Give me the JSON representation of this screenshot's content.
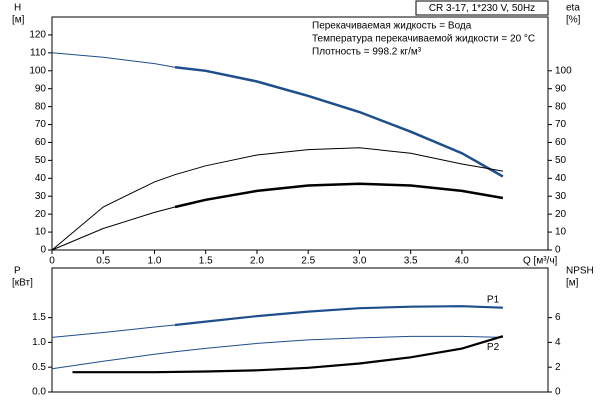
{
  "chart_data": [
    {
      "type": "line",
      "title": "CR 3-17, 1*230 V, 50Hz",
      "annotations": [
        "Перекачиваемая жидкость = Вода",
        "Температура перекачиваемой жидкости = 20 °C",
        "Плотность = 998.2 кг/м³"
      ],
      "ylabel": [
        "H",
        "[м]"
      ],
      "y2label": [
        "eta",
        "[%]"
      ],
      "xlabel": "Q [м³/ч]",
      "x": [
        0,
        0.5,
        1.0,
        1.2,
        1.5,
        2.0,
        2.5,
        3.0,
        3.5,
        4.0,
        4.4
      ],
      "xlim": [
        0,
        4.84
      ],
      "xticks": [
        0,
        0.5,
        {
          "value": 1,
          "label": "1.0"
        },
        1.5,
        {
          "value": 2,
          "label": "2.0"
        },
        2.5,
        {
          "value": 3,
          "label": "3.0"
        },
        3.5,
        {
          "value": 4,
          "label": "4.0"
        }
      ],
      "ylim": [
        0,
        130
      ],
      "yticks": [
        0,
        10,
        20,
        30,
        40,
        50,
        60,
        70,
        80,
        90,
        100,
        110,
        120
      ],
      "y2lim": [
        0,
        130
      ],
      "y2ticks": [
        0,
        10,
        20,
        30,
        40,
        50,
        60,
        70,
        80,
        90,
        100
      ],
      "series": [
        {
          "color": "#1f4e8c",
          "width": 1,
          "values": [
            110,
            107.5,
            104,
            102,
            null,
            null,
            null,
            null,
            null,
            null,
            null
          ]
        },
        {
          "color": "#1f4e8c",
          "width": 2.5,
          "values": [
            null,
            null,
            null,
            102,
            100,
            94,
            86,
            77,
            66,
            54,
            41
          ]
        },
        {
          "color": "#000000",
          "width": 1,
          "axis": "y2",
          "values": [
            0,
            24,
            38,
            42,
            47,
            53,
            56,
            57,
            54,
            48,
            44
          ]
        },
        {
          "color": "#000000",
          "width": 1,
          "axis": "y2",
          "values": [
            0,
            12,
            21,
            24,
            null,
            null,
            null,
            null,
            null,
            null,
            null
          ]
        },
        {
          "color": "#000000",
          "width": 2.5,
          "axis": "y2",
          "values": [
            null,
            null,
            null,
            24,
            28,
            33,
            36,
            37,
            36,
            33,
            29
          ]
        }
      ]
    },
    {
      "type": "line",
      "ylabel": [
        "P",
        "[кВт]"
      ],
      "y2label": [
        "NPSH",
        "[м]"
      ],
      "x": [
        0,
        0.5,
        1.0,
        1.2,
        1.5,
        2.0,
        2.5,
        3.0,
        3.5,
        4.0,
        4.4
      ],
      "xlim": [
        0,
        4.84
      ],
      "ylim": [
        0,
        2.5
      ],
      "yticks": [
        {
          "value": 0,
          "label": "0.0"
        },
        0.5,
        {
          "value": 1,
          "label": "1.0"
        },
        1.5
      ],
      "y2lim": [
        0,
        10
      ],
      "y2ticks": [
        0,
        2,
        4,
        6
      ],
      "series": [
        {
          "color": "#1f4e8c",
          "width": 1,
          "values": [
            1.1,
            1.2,
            1.31,
            1.35,
            null,
            null,
            null,
            null,
            null,
            null,
            null
          ]
        },
        {
          "name": "P1",
          "color": "#1f4e8c",
          "width": 2.2,
          "values": [
            null,
            null,
            null,
            1.35,
            1.42,
            1.53,
            1.62,
            1.69,
            1.72,
            1.73,
            1.7
          ]
        },
        {
          "name": "P2",
          "color": "#1f4e8c",
          "width": 1,
          "values": [
            0.47,
            0.62,
            0.76,
            0.81,
            0.88,
            0.98,
            1.05,
            1.09,
            1.12,
            1.12,
            1.1
          ]
        },
        {
          "color": "#000000",
          "width": 2.2,
          "axis": "y2",
          "x": [
            0.2,
            1.0,
            1.5,
            2.0,
            2.5,
            3.0,
            3.5,
            4.0,
            4.4
          ],
          "values": [
            1.6,
            1.6,
            1.65,
            1.75,
            1.95,
            2.3,
            2.8,
            3.5,
            4.5
          ]
        }
      ]
    }
  ]
}
